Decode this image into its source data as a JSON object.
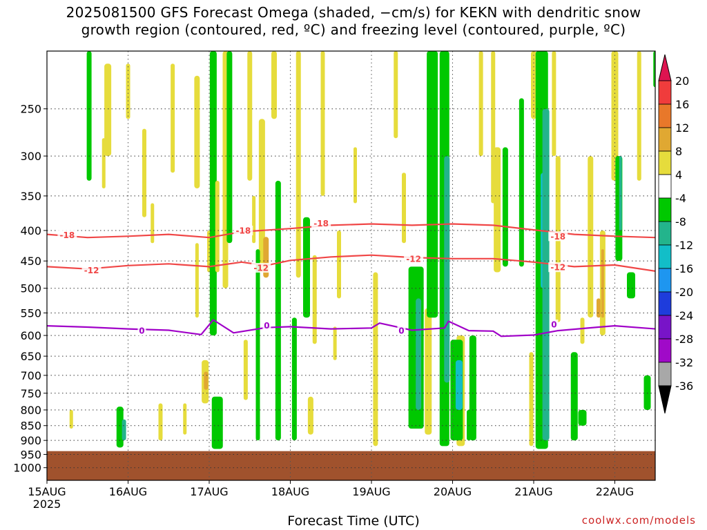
{
  "title": {
    "line1": "2025081500 GFS Forecast Omega (shaded, −cm/s) for KEKN with dendritic snow",
    "line2": "growth region (contoured, red, ºC) and freezing level (contoured, purple, ºC)"
  },
  "credit": "coolwx.com/models",
  "chart_data": {
    "type": "heatmap",
    "xlabel": "Forecast Time (UTC)",
    "ylabel": "",
    "y_scale": "log-pressure",
    "ylim": [
      1050,
      200
    ],
    "y_ticks": [
      250,
      300,
      350,
      400,
      450,
      500,
      550,
      600,
      650,
      700,
      750,
      800,
      850,
      900,
      950,
      1000
    ],
    "x_ticks": [
      {
        "day": 0,
        "label": "15AUG",
        "sub": "2025"
      },
      {
        "day": 1,
        "label": "16AUG"
      },
      {
        "day": 2,
        "label": "17AUG"
      },
      {
        "day": 3,
        "label": "18AUG"
      },
      {
        "day": 4,
        "label": "19AUG"
      },
      {
        "day": 5,
        "label": "20AUG"
      },
      {
        "day": 6,
        "label": "21AUG"
      },
      {
        "day": 7,
        "label": "22AUG"
      }
    ],
    "xlim_days": [
      0,
      7.5
    ],
    "grid": true,
    "ground_pressure": 938,
    "colorbar": {
      "labels": [
        "20",
        "16",
        "12",
        "8",
        "4",
        "-4",
        "-8",
        "-12",
        "-16",
        "-20",
        "-24",
        "-28",
        "-32",
        "-36"
      ],
      "colors": [
        "#dd1450",
        "#f03c3c",
        "#e8782a",
        "#e0a832",
        "#e6dc3c",
        "#ffffff",
        "#00c800",
        "#23b48c",
        "#12bec8",
        "#1e96f0",
        "#1e3cdc",
        "#7814c8",
        "#a00ac8",
        "#a8a8a8",
        "#000000"
      ]
    },
    "series": [
      {
        "name": "-18",
        "color": "#f04646",
        "points": [
          [
            0,
            406
          ],
          [
            0.5,
            411
          ],
          [
            1,
            409
          ],
          [
            1.5,
            406
          ],
          [
            2,
            411
          ],
          [
            2.4,
            402
          ],
          [
            3,
            397
          ],
          [
            3.5,
            392
          ],
          [
            4,
            390
          ],
          [
            4.5,
            392
          ],
          [
            5,
            390
          ],
          [
            5.5,
            392
          ],
          [
            6,
            399
          ],
          [
            6.5,
            406
          ],
          [
            7,
            409
          ],
          [
            7.5,
            411
          ]
        ],
        "labels": [
          {
            "day": 0.25,
            "p": 407
          },
          {
            "day": 2.42,
            "p": 400
          },
          {
            "day": 3.38,
            "p": 389
          },
          {
            "day": 6.3,
            "p": 409
          }
        ]
      },
      {
        "name": "-12",
        "color": "#f04646",
        "points": [
          [
            0,
            460
          ],
          [
            0.5,
            464
          ],
          [
            1,
            458
          ],
          [
            1.5,
            455
          ],
          [
            2,
            460
          ],
          [
            2.4,
            452
          ],
          [
            2.7,
            458
          ],
          [
            3,
            449
          ],
          [
            3.5,
            443
          ],
          [
            4,
            440
          ],
          [
            4.5,
            444
          ],
          [
            5,
            446
          ],
          [
            5.5,
            446
          ],
          [
            6,
            452
          ],
          [
            6.5,
            460
          ],
          [
            7,
            457
          ],
          [
            7.5,
            468
          ]
        ],
        "labels": [
          {
            "day": 0.55,
            "p": 466
          },
          {
            "day": 2.64,
            "p": 462
          },
          {
            "day": 4.52,
            "p": 446
          },
          {
            "day": 6.3,
            "p": 461
          }
        ]
      },
      {
        "name": "0",
        "color": "#a000c8",
        "points": [
          [
            0,
            578
          ],
          [
            0.5,
            581
          ],
          [
            1,
            585
          ],
          [
            1.5,
            588
          ],
          [
            1.9,
            598
          ],
          [
            2.05,
            565
          ],
          [
            2.3,
            594
          ],
          [
            2.7,
            582
          ],
          [
            3,
            580
          ],
          [
            3.5,
            585
          ],
          [
            4,
            583
          ],
          [
            4.1,
            572
          ],
          [
            4.5,
            588
          ],
          [
            4.9,
            583
          ],
          [
            4.95,
            568
          ],
          [
            5.2,
            589
          ],
          [
            5.5,
            590
          ],
          [
            5.6,
            602
          ],
          [
            6,
            599
          ],
          [
            6.3,
            589
          ],
          [
            6.8,
            581
          ],
          [
            7,
            578
          ],
          [
            7.5,
            585
          ]
        ],
        "labels": [
          {
            "day": 1.17,
            "p": 589
          },
          {
            "day": 2.71,
            "p": 577
          },
          {
            "day": 4.37,
            "p": 589
          },
          {
            "day": 6.25,
            "p": 575
          }
        ]
      }
    ]
  }
}
